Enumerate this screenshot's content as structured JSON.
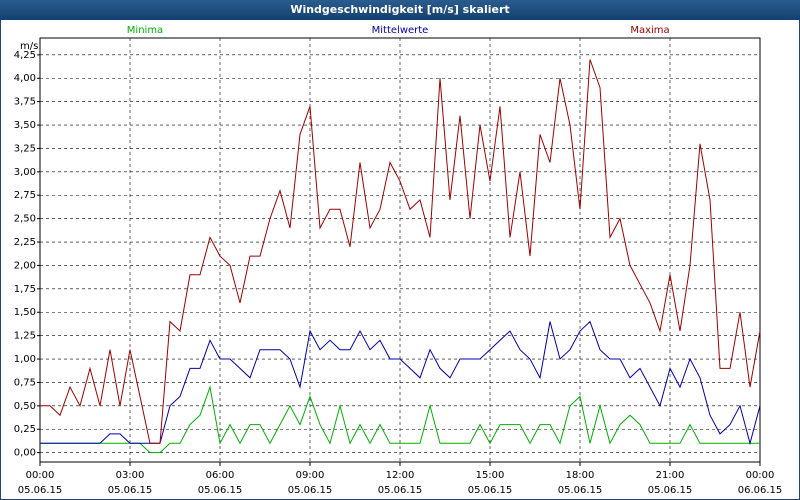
{
  "chart_data": {
    "type": "line",
    "title": "Windgeschwindigkeit [m/s] skaliert",
    "y_label": "m/s",
    "x": [
      0,
      20,
      40,
      60,
      80,
      100,
      120,
      140,
      160,
      180,
      200,
      220,
      240,
      260,
      280,
      300,
      320,
      340,
      360,
      380,
      400,
      420,
      440,
      460,
      480,
      500,
      520,
      540,
      560,
      580,
      600,
      620,
      640,
      660,
      680,
      700,
      720,
      740,
      760,
      780,
      800,
      820,
      840,
      860,
      880,
      900,
      920,
      940,
      960,
      980,
      1000,
      1020,
      1040,
      1060,
      1080,
      1100,
      1120,
      1140,
      1160,
      1180,
      1200,
      1220,
      1240,
      1260,
      1280,
      1300,
      1320,
      1340,
      1360,
      1380,
      1400,
      1420,
      1440
    ],
    "series": [
      {
        "name": "Minima",
        "color": "#00b000",
        "values": [
          0.1,
          0.1,
          0.1,
          0.1,
          0.1,
          0.1,
          0.1,
          0.1,
          0.1,
          0.1,
          0.1,
          0.0,
          0.0,
          0.1,
          0.1,
          0.3,
          0.4,
          0.7,
          0.1,
          0.3,
          0.1,
          0.3,
          0.3,
          0.1,
          0.3,
          0.5,
          0.3,
          0.6,
          0.3,
          0.1,
          0.5,
          0.1,
          0.3,
          0.1,
          0.3,
          0.1,
          0.1,
          0.1,
          0.1,
          0.5,
          0.1,
          0.1,
          0.1,
          0.1,
          0.3,
          0.1,
          0.3,
          0.3,
          0.3,
          0.1,
          0.3,
          0.3,
          0.1,
          0.5,
          0.6,
          0.1,
          0.5,
          0.1,
          0.3,
          0.4,
          0.3,
          0.1,
          0.1,
          0.1,
          0.1,
          0.3,
          0.1,
          0.1,
          0.1,
          0.1,
          0.1,
          0.1,
          0.1
        ]
      },
      {
        "name": "Mittelwerte",
        "color": "#0000b0",
        "values": [
          0.1,
          0.1,
          0.1,
          0.1,
          0.1,
          0.1,
          0.1,
          0.2,
          0.2,
          0.1,
          0.1,
          0.1,
          0.1,
          0.5,
          0.6,
          0.9,
          0.9,
          1.2,
          1.0,
          1.0,
          0.9,
          0.8,
          1.1,
          1.1,
          1.1,
          1.0,
          0.7,
          1.3,
          1.1,
          1.2,
          1.1,
          1.1,
          1.3,
          1.1,
          1.2,
          1.0,
          1.0,
          0.9,
          0.8,
          1.1,
          0.9,
          0.8,
          1.0,
          1.0,
          1.0,
          1.1,
          1.2,
          1.3,
          1.1,
          1.0,
          0.8,
          1.4,
          1.0,
          1.1,
          1.3,
          1.4,
          1.1,
          1.0,
          1.0,
          0.8,
          0.9,
          0.7,
          0.5,
          0.9,
          0.7,
          1.0,
          0.8,
          0.4,
          0.2,
          0.3,
          0.5,
          0.1,
          0.5
        ]
      },
      {
        "name": "Maxima",
        "color": "#a00000",
        "values": [
          0.5,
          0.5,
          0.4,
          0.7,
          0.5,
          0.9,
          0.5,
          1.1,
          0.5,
          1.1,
          0.6,
          0.1,
          0.1,
          1.4,
          1.3,
          1.9,
          1.9,
          2.3,
          2.1,
          2.0,
          1.6,
          2.1,
          2.1,
          2.5,
          2.8,
          2.4,
          3.4,
          3.7,
          2.4,
          2.6,
          2.6,
          2.2,
          3.1,
          2.4,
          2.6,
          3.1,
          2.9,
          2.6,
          2.7,
          2.3,
          4.0,
          2.7,
          3.6,
          2.5,
          3.5,
          2.9,
          3.7,
          2.3,
          3.0,
          2.1,
          3.4,
          3.1,
          4.0,
          3.5,
          2.6,
          4.2,
          3.9,
          2.3,
          2.5,
          2.0,
          1.8,
          1.6,
          1.3,
          1.9,
          1.3,
          2.0,
          3.3,
          2.7,
          0.9,
          0.9,
          1.5,
          0.7,
          1.3
        ]
      }
    ],
    "xlim": [
      0,
      1440
    ],
    "xticks": [
      {
        "value": 0,
        "label": "00:00",
        "date": "05.06.15"
      },
      {
        "value": 180,
        "label": "03:00",
        "date": "05.06.15"
      },
      {
        "value": 360,
        "label": "06:00",
        "date": "05.06.15"
      },
      {
        "value": 540,
        "label": "09:00",
        "date": "05.06.15"
      },
      {
        "value": 720,
        "label": "12:00",
        "date": "05.06.15"
      },
      {
        "value": 900,
        "label": "15:00",
        "date": "05.06.15"
      },
      {
        "value": 1080,
        "label": "18:00",
        "date": "05.06.15"
      },
      {
        "value": 1260,
        "label": "21:00",
        "date": "05.06.15"
      },
      {
        "value": 1440,
        "label": "00:00",
        "date": "06.06.15"
      }
    ],
    "ylim": [
      -0.1,
      4.43
    ],
    "yticks": [
      {
        "value": 0,
        "label": "0,00"
      },
      {
        "value": 0.25,
        "label": "0,25"
      },
      {
        "value": 0.5,
        "label": "0,50"
      },
      {
        "value": 0.75,
        "label": "0,75"
      },
      {
        "value": 1,
        "label": "1,00"
      },
      {
        "value": 1.25,
        "label": "1,25"
      },
      {
        "value": 1.5,
        "label": "1,50"
      },
      {
        "value": 1.75,
        "label": "1,75"
      },
      {
        "value": 2,
        "label": "2,00"
      },
      {
        "value": 2.25,
        "label": "2,25"
      },
      {
        "value": 2.5,
        "label": "2,50"
      },
      {
        "value": 2.75,
        "label": "2,75"
      },
      {
        "value": 3,
        "label": "3,00"
      },
      {
        "value": 3.25,
        "label": "3,25"
      },
      {
        "value": 3.5,
        "label": "3,50"
      },
      {
        "value": 3.75,
        "label": "3,75"
      },
      {
        "value": 4,
        "label": "4,00"
      },
      {
        "value": 4.25,
        "label": "4,25"
      }
    ],
    "grid": true
  }
}
